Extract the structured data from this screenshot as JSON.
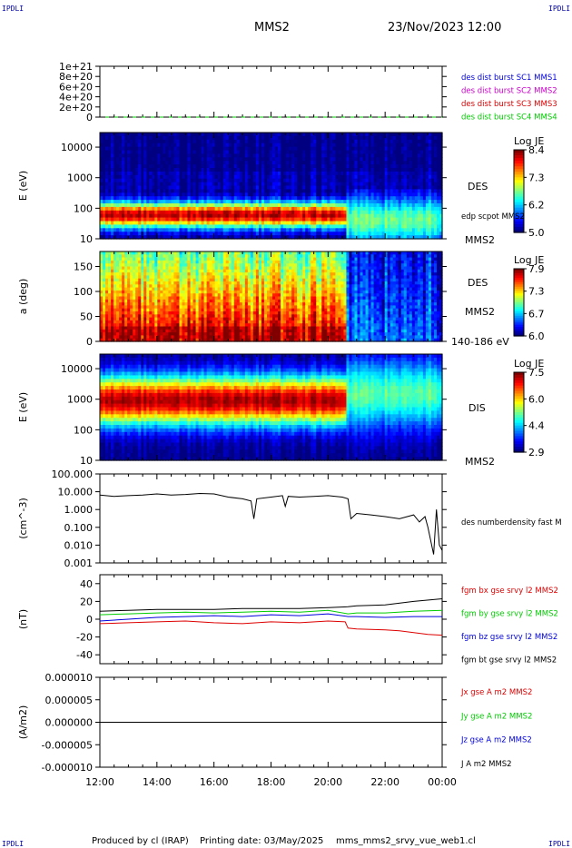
{
  "header": {
    "left_logo": "IPDLI",
    "right_logo": "IPDLI",
    "spacecraft": "MMS2",
    "datetime": "23/Nov/2023 12:00"
  },
  "footer": {
    "producer": "Produced by cl (IRAP)",
    "print_date": "Printing date: 03/May/2025",
    "script_name": "mms_mms2_srvy_vue_web1.cl",
    "left_logo": "IPDLI",
    "right_logo": "IPDLI"
  },
  "time_axis": {
    "start": "12:00",
    "end": "00:00",
    "ticks": [
      "12:00",
      "14:00",
      "16:00",
      "18:00",
      "20:00",
      "22:00",
      "00:00"
    ]
  },
  "colors": {
    "red": "#dd0000",
    "green": "#00cc00",
    "blue": "#0000dd",
    "black": "#000000",
    "magenta": "#cc00cc"
  },
  "chart_data": [
    {
      "type": "line",
      "id": "panel1",
      "ylim": [
        0,
        1e+21
      ],
      "tick_labels": [
        "1e+21",
        "8e+20",
        "6e+20",
        "4e+20",
        "2e+20",
        "0"
      ],
      "tick_values": [
        1e+21,
        8e+20,
        6e+20,
        4e+20,
        2e+20,
        0
      ],
      "series": [
        {
          "name": "des dist burst SC1 MMS1",
          "color": "#0000dd",
          "x_hours": [
            12,
            24
          ],
          "y": [
            0,
            0
          ]
        },
        {
          "name": "des dist burst SC2 MMS2",
          "color": "#cc00cc",
          "x_hours": [
            12,
            24
          ],
          "y": [
            0,
            0
          ]
        },
        {
          "name": "des dist burst SC3 MMS3",
          "color": "#dd0000",
          "x_hours": [
            12,
            24
          ],
          "y": [
            0,
            0
          ]
        },
        {
          "name": "des dist burst SC4 MMS4",
          "color": "#00cc00",
          "x_hours": [
            12,
            24
          ],
          "y": [
            0,
            0
          ]
        }
      ]
    },
    {
      "type": "heatmap",
      "id": "panel2",
      "ylabel": "E (eV)",
      "yscale": "log",
      "ylim": [
        10,
        30000
      ],
      "tick_labels": [
        "10000",
        "1000",
        "100",
        "10"
      ],
      "tick_values": [
        10000,
        1000,
        100,
        10
      ],
      "right_label": "DES",
      "right_sublabel": "edp scpot MMS2",
      "right_bottom": "MMS2",
      "colorbar": {
        "title": "Log JE",
        "labels": [
          "8.4",
          "7.3",
          "6.2",
          "5.0"
        ],
        "range": [
          5.0,
          8.4
        ]
      },
      "features": [
        {
          "segment": "12:00-20:40",
          "peak_energy_eV": 60,
          "peak_logJE": 8.2,
          "band_low_eV": 30,
          "band_high_eV": 180
        },
        {
          "segment": "20:40-24:00",
          "peak_energy_eV": 40,
          "peak_logJE": 6.6,
          "band_low_eV": 10,
          "band_high_eV": 300
        }
      ]
    },
    {
      "type": "heatmap",
      "id": "panel3",
      "ylabel": "a (deg)",
      "ylim": [
        0,
        180
      ],
      "tick_labels": [
        "150",
        "100",
        "50",
        "0"
      ],
      "tick_values": [
        150,
        100,
        50,
        0
      ],
      "right_label": "DES",
      "right_sublabel": "MMS2",
      "right_bottom": "140-186 eV",
      "colorbar": {
        "title": "Log JE",
        "labels": [
          "7.9",
          "7.3",
          "6.7",
          "6.0"
        ],
        "range": [
          6.0,
          7.9
        ]
      },
      "features": [
        {
          "segment": "12:00-20:40",
          "low_pitch_logJE": 7.8,
          "high_pitch_logJE": 6.9
        },
        {
          "segment": "20:40-24:00",
          "low_pitch_logJE": 6.4,
          "high_pitch_logJE": 6.2
        }
      ]
    },
    {
      "type": "heatmap",
      "id": "panel4",
      "ylabel": "E (eV)",
      "yscale": "log",
      "ylim": [
        10,
        30000
      ],
      "tick_labels": [
        "10000",
        "1000",
        "100",
        "10"
      ],
      "tick_values": [
        10000,
        1000,
        100,
        10
      ],
      "right_label": "DIS",
      "right_bottom": "MMS2",
      "colorbar": {
        "title": "Log JE",
        "labels": [
          "7.5",
          "6.0",
          "4.4",
          "2.9"
        ],
        "range": [
          2.9,
          7.5
        ]
      },
      "features": [
        {
          "segment": "12:00-20:40",
          "peak_energy_eV": 900,
          "peak_logJE": 7.3,
          "band_low_eV": 150,
          "band_high_eV": 5000
        },
        {
          "segment": "20:40-24:00",
          "peak_energy_eV": 1500,
          "peak_logJE": 5.0,
          "band_low_eV": 100,
          "band_high_eV": 15000
        }
      ]
    },
    {
      "type": "line",
      "id": "panel5",
      "ylabel": "(cm^-3)",
      "yscale": "log",
      "ylim": [
        0.001,
        100
      ],
      "tick_labels": [
        "100.000",
        "10.000",
        "1.000",
        "0.100",
        "0.010",
        "0.001"
      ],
      "tick_values": [
        100,
        10,
        1,
        0.1,
        0.01,
        0.001
      ],
      "series": [
        {
          "name": "des numberdensity fast M",
          "color": "#000000",
          "x_hours": [
            12.0,
            12.5,
            13.0,
            13.5,
            14.0,
            14.5,
            15.0,
            15.5,
            16.0,
            16.5,
            17.0,
            17.3,
            17.4,
            17.5,
            18.0,
            18.4,
            18.5,
            18.6,
            19.0,
            19.5,
            20.0,
            20.5,
            20.7,
            20.8,
            21.0,
            21.5,
            22.0,
            22.5,
            23.0,
            23.2,
            23.4,
            23.5,
            23.7,
            23.8,
            23.9,
            24.0
          ],
          "y": [
            6.5,
            5.5,
            6.0,
            6.5,
            7.5,
            6.5,
            7.0,
            8.0,
            7.5,
            5.0,
            4.0,
            3.0,
            0.3,
            4.0,
            5.0,
            6.0,
            1.5,
            5.5,
            5.0,
            5.5,
            6.0,
            5.0,
            4.0,
            0.3,
            0.6,
            0.5,
            0.4,
            0.3,
            0.5,
            0.2,
            0.4,
            0.1,
            0.003,
            1.0,
            0.01,
            0.005
          ]
        }
      ]
    },
    {
      "type": "line",
      "id": "panel6",
      "ylabel": "(nT)",
      "ylim": [
        -50,
        50
      ],
      "tick_labels": [
        "40",
        "20",
        "0",
        "-20",
        "-40"
      ],
      "tick_values": [
        40,
        20,
        0,
        -20,
        -40
      ],
      "series": [
        {
          "name": "fgm bx gse srvy l2 MMS2",
          "color": "#dd0000",
          "x_hours": [
            12,
            13,
            14,
            15,
            16,
            17,
            18,
            19,
            20,
            20.6,
            20.7,
            21,
            22,
            22.5,
            23,
            23.5,
            24
          ],
          "y": [
            -5,
            -4,
            -3,
            -2,
            -4,
            -5,
            -3,
            -4,
            -2,
            -3,
            -10,
            -11,
            -12,
            -13,
            -15,
            -17,
            -18
          ]
        },
        {
          "name": "fgm by gse srvy l2 MMS2",
          "color": "#00cc00",
          "x_hours": [
            12,
            13,
            14,
            15,
            16,
            17,
            18,
            19,
            20,
            20.7,
            21,
            22,
            23,
            24
          ],
          "y": [
            5,
            6,
            7,
            8,
            7,
            8,
            9,
            8,
            10,
            6,
            7,
            7,
            9,
            10
          ]
        },
        {
          "name": "fgm bz gse srvy l2 MMS2",
          "color": "#0000dd",
          "x_hours": [
            12,
            13,
            14,
            15,
            16,
            17,
            18,
            19,
            20,
            20.7,
            21,
            22,
            23,
            24
          ],
          "y": [
            -2,
            0,
            2,
            3,
            4,
            3,
            5,
            4,
            6,
            3,
            3,
            2,
            3,
            3
          ]
        },
        {
          "name": "fgm bt gse srvy l2 MMS2",
          "color": "#000000",
          "x_hours": [
            12,
            13,
            14,
            15,
            16,
            17,
            18,
            19,
            20,
            20.7,
            21,
            22,
            23,
            24
          ],
          "y": [
            9,
            10,
            11,
            11,
            11,
            12,
            12,
            12,
            13,
            14,
            15,
            16,
            20,
            23
          ]
        }
      ]
    },
    {
      "type": "line",
      "id": "panel7",
      "ylabel": "(A/m2)",
      "ylim": [
        -1e-05,
        1e-05
      ],
      "tick_labels": [
        "0.000010",
        "0.000005",
        "0.000000",
        "-0.000005",
        "-0.000010"
      ],
      "tick_values": [
        1e-05,
        5e-06,
        0,
        -5e-06,
        -1e-05
      ],
      "series": [
        {
          "name": "Jx gse A m2 MMS2",
          "color": "#dd0000",
          "x_hours": [
            12,
            24
          ],
          "y": [
            0,
            0
          ]
        },
        {
          "name": "Jy gse A m2 MMS2",
          "color": "#00cc00",
          "x_hours": [
            12,
            24
          ],
          "y": [
            0,
            0
          ]
        },
        {
          "name": "Jz gse A m2 MMS2",
          "color": "#0000dd",
          "x_hours": [
            12,
            24
          ],
          "y": [
            0,
            0
          ]
        },
        {
          "name": "J A m2 MMS2",
          "color": "#000000",
          "x_hours": [
            12,
            24
          ],
          "y": [
            0,
            0
          ]
        }
      ]
    }
  ]
}
